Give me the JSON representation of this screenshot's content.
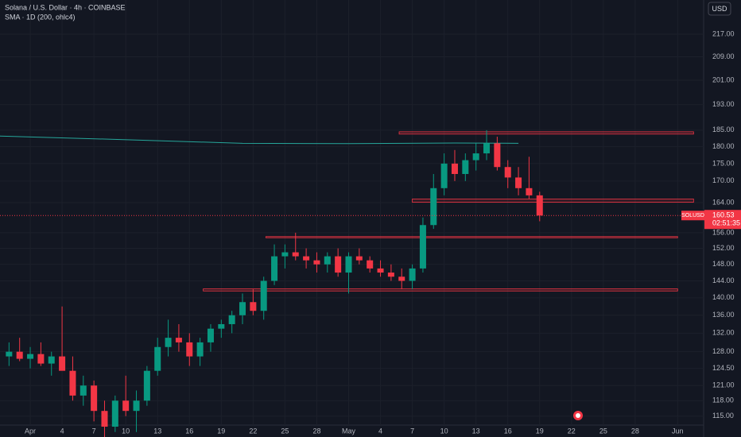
{
  "chart_data": {
    "type": "candlestick",
    "title": "Solana / U.S. Dollar · 4h · COINBASE",
    "indicator": "SMA · 1D (200, ohlc4)",
    "currency": "USD",
    "log_scale": true,
    "grid": true,
    "up_color": "#089981",
    "down_color": "#f23645",
    "xlim": [
      -2.85,
      63.45
    ],
    "ylim": [
      113.3,
      229.7
    ],
    "xticks": [
      {
        "value": 0,
        "label": "Apr"
      },
      {
        "value": 3,
        "label": "4"
      },
      {
        "value": 6,
        "label": "7"
      },
      {
        "value": 9,
        "label": "10"
      },
      {
        "value": 12,
        "label": "13"
      },
      {
        "value": 15,
        "label": "16"
      },
      {
        "value": 18,
        "label": "19"
      },
      {
        "value": 21,
        "label": "22"
      },
      {
        "value": 24,
        "label": "25"
      },
      {
        "value": 27,
        "label": "28"
      },
      {
        "value": 30,
        "label": "May"
      },
      {
        "value": 33,
        "label": "4"
      },
      {
        "value": 36,
        "label": "7"
      },
      {
        "value": 39,
        "label": "10"
      },
      {
        "value": 42,
        "label": "13"
      },
      {
        "value": 45,
        "label": "16"
      },
      {
        "value": 48,
        "label": "19"
      },
      {
        "value": 51,
        "label": "22"
      },
      {
        "value": 54,
        "label": "25"
      },
      {
        "value": 57,
        "label": "28"
      },
      {
        "value": 61,
        "label": "Jun"
      }
    ],
    "yticks": [
      {
        "value": 217,
        "label": "217.00"
      },
      {
        "value": 209,
        "label": "209.00"
      },
      {
        "value": 201,
        "label": "201.00"
      },
      {
        "value": 193,
        "label": "193.00"
      },
      {
        "value": 185,
        "label": "185.00"
      },
      {
        "value": 180,
        "label": "180.00"
      },
      {
        "value": 175,
        "label": "175.00"
      },
      {
        "value": 170,
        "label": "170.00"
      },
      {
        "value": 164,
        "label": "164.00"
      },
      {
        "value": 156,
        "label": "156.00"
      },
      {
        "value": 152,
        "label": "152.00"
      },
      {
        "value": 148,
        "label": "148.00"
      },
      {
        "value": 144,
        "label": "144.00"
      },
      {
        "value": 140,
        "label": "140.00"
      },
      {
        "value": 136,
        "label": "136.00"
      },
      {
        "value": 132,
        "label": "132.00"
      },
      {
        "value": 128,
        "label": "128.00"
      },
      {
        "value": 124.5,
        "label": "124.50"
      },
      {
        "value": 121,
        "label": "121.00"
      },
      {
        "value": 118,
        "label": "118.00"
      },
      {
        "value": 115,
        "label": "115.00"
      }
    ],
    "candles": {
      "x": [
        -2,
        -1,
        0,
        1,
        2,
        3,
        4,
        5,
        6,
        7,
        8,
        9,
        10,
        11,
        12,
        13,
        14,
        15,
        16,
        17,
        18,
        19,
        20,
        21,
        22,
        23,
        24,
        25,
        26,
        27,
        28,
        29,
        30,
        31,
        32,
        33,
        34,
        35,
        36,
        37,
        38,
        39,
        40,
        41,
        42,
        43,
        44,
        45,
        46,
        47,
        48
      ],
      "open": [
        127,
        128,
        126.5,
        127.5,
        125.5,
        127,
        124,
        119,
        121,
        116,
        113,
        118,
        116,
        118,
        124,
        129,
        131,
        130,
        127,
        130,
        133,
        134,
        136,
        139,
        137,
        144,
        150,
        151,
        150,
        149,
        148,
        150,
        146,
        150,
        149,
        147,
        146,
        145,
        144,
        147,
        158,
        168,
        175,
        172,
        176,
        178,
        181,
        174,
        171,
        168,
        166
      ],
      "high": [
        130,
        131,
        129,
        130,
        128,
        138,
        127,
        123,
        122,
        118,
        119,
        123,
        120,
        125,
        131,
        135,
        134,
        132,
        131,
        134,
        135,
        137,
        141,
        142,
        145,
        153,
        153,
        156,
        152,
        151,
        151,
        152,
        151,
        152,
        150,
        149,
        148,
        147,
        148,
        160,
        172,
        178,
        179,
        178,
        181,
        185,
        183,
        176,
        174,
        177,
        167
      ],
      "low": [
        125,
        126,
        124.5,
        125,
        123,
        126,
        118,
        117,
        114,
        111,
        112,
        115,
        112,
        117,
        123,
        127,
        128,
        125,
        125,
        128,
        131,
        132,
        134,
        136,
        135,
        143,
        147,
        149,
        147,
        146,
        146,
        145,
        141,
        148,
        146,
        145,
        144,
        142,
        142,
        146,
        157,
        166,
        170,
        170,
        173,
        176,
        173,
        168,
        166,
        165,
        159
      ],
      "close": [
        128,
        126.5,
        127.5,
        125.5,
        127,
        124,
        119,
        121,
        116,
        113,
        118,
        116,
        118,
        124,
        129,
        131,
        130,
        127,
        130,
        133,
        134,
        136,
        139,
        137,
        144,
        150,
        151,
        150,
        149,
        148,
        150,
        146,
        150,
        149,
        147,
        146,
        145,
        144,
        147,
        158,
        168,
        175,
        172,
        176,
        178,
        181,
        174,
        171,
        168,
        166,
        160.53
      ]
    },
    "sma": {
      "color": "#26a69a",
      "x": [
        -2.85,
        10,
        20,
        30,
        40,
        46
      ],
      "values": [
        183.2,
        182.0,
        181.0,
        180.9,
        181.1,
        181.0
      ]
    },
    "zones": [
      {
        "x0": 34.76,
        "x1": 62.5,
        "y0": 183.8,
        "y1": 184.5
      },
      {
        "x0": 36.0,
        "x1": 62.5,
        "y0": 164.1,
        "y1": 165.0
      },
      {
        "x0": 22.2,
        "x1": 61.0,
        "y0": 154.7,
        "y1": 155.0
      },
      {
        "x0": 16.3,
        "x1": 61.0,
        "y0": 141.6,
        "y1": 142.1
      }
    ],
    "last_price": {
      "symbol": "SOLUSD",
      "value": 160.53,
      "countdown": "02:51:35"
    }
  }
}
